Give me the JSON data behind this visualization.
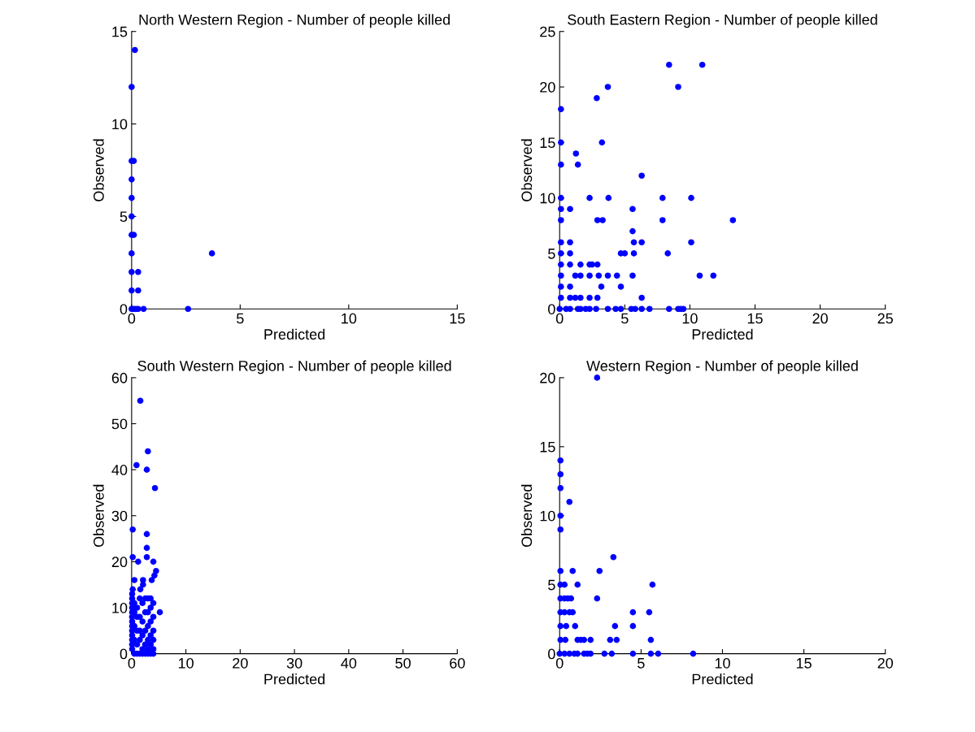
{
  "chart_data": [
    {
      "type": "scatter",
      "title": "North Western Region - Number of people killed",
      "xlabel": "Predicted",
      "ylabel": "Observed",
      "xlim": [
        0,
        15
      ],
      "ylim": [
        0,
        15
      ],
      "xticks": [
        0,
        5,
        10,
        15
      ],
      "yticks": [
        0,
        5,
        10,
        15
      ],
      "grid": false,
      "marker": "circle",
      "series": [
        {
          "color": "#0000ff",
          "x": [
            0.15,
            0,
            0,
            0.1,
            0,
            0,
            0,
            0,
            0.1,
            0,
            0,
            0.3,
            0,
            0.3,
            0,
            0.1,
            0.2,
            0.3,
            0.55,
            2.6,
            3.7
          ],
          "values": [
            14,
            12,
            8,
            8,
            7,
            6,
            5,
            4,
            4,
            3,
            2,
            2,
            1,
            1,
            0,
            0,
            0,
            0,
            0,
            0,
            3
          ]
        }
      ]
    },
    {
      "type": "scatter",
      "title": "South Eastern Region - Number of people killed",
      "xlabel": "Predicted",
      "ylabel": "Observed",
      "xlim": [
        0,
        25
      ],
      "ylim": [
        0,
        25
      ],
      "xticks": [
        0,
        5,
        10,
        15,
        20,
        25
      ],
      "yticks": [
        0,
        5,
        10,
        15,
        20,
        25
      ],
      "grid": false,
      "marker": "circle",
      "series": [
        {
          "color": "#0000ff",
          "x": [
            8.4,
            10.95,
            9.1,
            3.7,
            2.85,
            0.1,
            0.1,
            3.25,
            1.25,
            1.4,
            0.1,
            6.3,
            0.1,
            2.3,
            3.75,
            7.9,
            10.1,
            0.1,
            0.8,
            5.6,
            0.1,
            2.9,
            3.3,
            7.9,
            13.3,
            5.6,
            0.1,
            0.8,
            5.7,
            6.3,
            10.1,
            0.1,
            0.8,
            4.7,
            5.0,
            5.7,
            8.3,
            0.1,
            0.8,
            1.6,
            2.3,
            2.5,
            2.9,
            0.1,
            1.2,
            1.6,
            2.3,
            3.0,
            3.7,
            4.4,
            5.6,
            10.75,
            11.8,
            0.1,
            0.8,
            3.2,
            4.7,
            0.1,
            0.8,
            1.2,
            1.6,
            2.3,
            2.9,
            6.3,
            0,
            0.5,
            0.8,
            1.4,
            1.6,
            2.0,
            2.3,
            2.8,
            3.7,
            4.3,
            4.7,
            5.5,
            5.8,
            6.3,
            6.9,
            8.4,
            9.1,
            9.3,
            9.5
          ],
          "values": [
            22,
            22,
            20,
            20,
            19,
            18,
            15,
            15,
            14,
            13,
            13,
            12,
            10,
            10,
            10,
            10,
            10,
            9,
            9,
            9,
            8,
            8,
            8,
            8,
            8,
            7,
            6,
            6,
            6,
            6,
            6,
            5,
            5,
            5,
            5,
            5,
            5,
            4,
            4,
            4,
            4,
            4,
            4,
            3,
            3,
            3,
            3,
            3,
            3,
            3,
            3,
            3,
            3,
            2,
            2,
            2,
            2,
            1,
            1,
            1,
            1,
            1,
            1,
            1,
            0,
            0,
            0,
            0,
            0,
            0,
            0,
            0,
            0,
            0,
            0,
            0,
            0,
            0,
            0,
            0,
            0,
            0,
            0
          ]
        }
      ]
    },
    {
      "type": "scatter",
      "title": "South Western Region - Number of people killed",
      "xlabel": "Predicted",
      "ylabel": "Observed",
      "xlim": [
        0,
        60
      ],
      "ylim": [
        0,
        60
      ],
      "xticks": [
        0,
        10,
        20,
        30,
        40,
        50,
        60
      ],
      "yticks": [
        0,
        10,
        20,
        30,
        40,
        50,
        60
      ],
      "grid": false,
      "marker": "circle",
      "series": [
        {
          "color": "#0000ff",
          "x": [
            1.6,
            3.0,
            0.9,
            2.8,
            4.3,
            0.2,
            2.8,
            2.8,
            0.2,
            2.8,
            1.2,
            4.0,
            4.5,
            4.2,
            3.7,
            0.5,
            2.1,
            2.1,
            1.6,
            0.2,
            5.2,
            0.1,
            0.1,
            0.1,
            0.1,
            0.1,
            0.1,
            0.1,
            0.1,
            0.1,
            0.1,
            0.1,
            0.1,
            0.1,
            0.5,
            0.5,
            0.5,
            0.5,
            0.5,
            1.0,
            1.0,
            1.0,
            1.0,
            1.0,
            1.5,
            1.5,
            1.5,
            1.5,
            1.5,
            2.0,
            2.0,
            2.0,
            2.0,
            2.0,
            2.5,
            2.5,
            2.5,
            2.5,
            2.5,
            3.0,
            3.0,
            3.0,
            3.0,
            3.0,
            3.0,
            3.5,
            3.5,
            3.5,
            3.5,
            3.5,
            3.5,
            4.0,
            4.0,
            4.0,
            4.0,
            4.0,
            4.0
          ],
          "values": [
            55,
            44,
            41,
            40,
            36,
            27,
            26,
            23,
            21,
            21,
            20,
            20,
            18,
            17,
            16,
            16,
            16,
            15,
            14,
            14,
            9,
            13,
            12,
            11,
            10,
            9,
            8,
            7,
            6,
            5,
            4,
            3,
            2,
            1,
            0,
            3,
            6,
            9,
            11,
            0,
            2,
            5,
            8,
            10,
            0,
            3,
            5,
            8,
            12,
            0,
            1,
            4,
            7,
            11,
            0,
            2,
            5,
            9,
            12,
            0,
            1,
            3,
            6,
            9,
            12,
            0,
            2,
            4,
            7,
            10,
            12,
            0,
            1,
            3,
            5,
            8,
            11
          ]
        }
      ]
    },
    {
      "type": "scatter",
      "title": "Western Region - Number of people killed",
      "xlabel": "Predicted",
      "ylabel": "Observed",
      "xlim": [
        0,
        20
      ],
      "ylim": [
        0,
        20
      ],
      "xticks": [
        0,
        5,
        10,
        15,
        20
      ],
      "yticks": [
        0,
        5,
        10,
        15,
        20
      ],
      "grid": false,
      "marker": "circle",
      "series": [
        {
          "color": "#0000ff",
          "x": [
            2.3,
            0.05,
            0.05,
            0.05,
            0.6,
            0.05,
            0.05,
            3.3,
            0.05,
            0.8,
            2.45,
            0.05,
            0.3,
            1.1,
            5.7,
            0.05,
            0.3,
            0.5,
            0.7,
            2.3,
            0.05,
            0.3,
            0.6,
            0.8,
            4.5,
            5.5,
            0.05,
            0.4,
            0.95,
            3.4,
            4.5,
            0.05,
            0.35,
            1.1,
            1.3,
            1.5,
            1.9,
            3.1,
            3.5,
            5.6,
            0,
            0.3,
            0.6,
            0.9,
            1.1,
            1.5,
            1.7,
            1.9,
            2.75,
            3.2,
            4.5,
            5.6,
            6.05,
            8.2
          ],
          "values": [
            20,
            14,
            13,
            12,
            11,
            10,
            9,
            7,
            6,
            6,
            6,
            5,
            5,
            5,
            5,
            4,
            4,
            4,
            4,
            4,
            3,
            3,
            3,
            3,
            3,
            3,
            2,
            2,
            2,
            2,
            2,
            1,
            1,
            1,
            1,
            1,
            1,
            1,
            1,
            1,
            0,
            0,
            0,
            0,
            0,
            0,
            0,
            0,
            0,
            0,
            0,
            0,
            0,
            0
          ]
        }
      ]
    }
  ]
}
